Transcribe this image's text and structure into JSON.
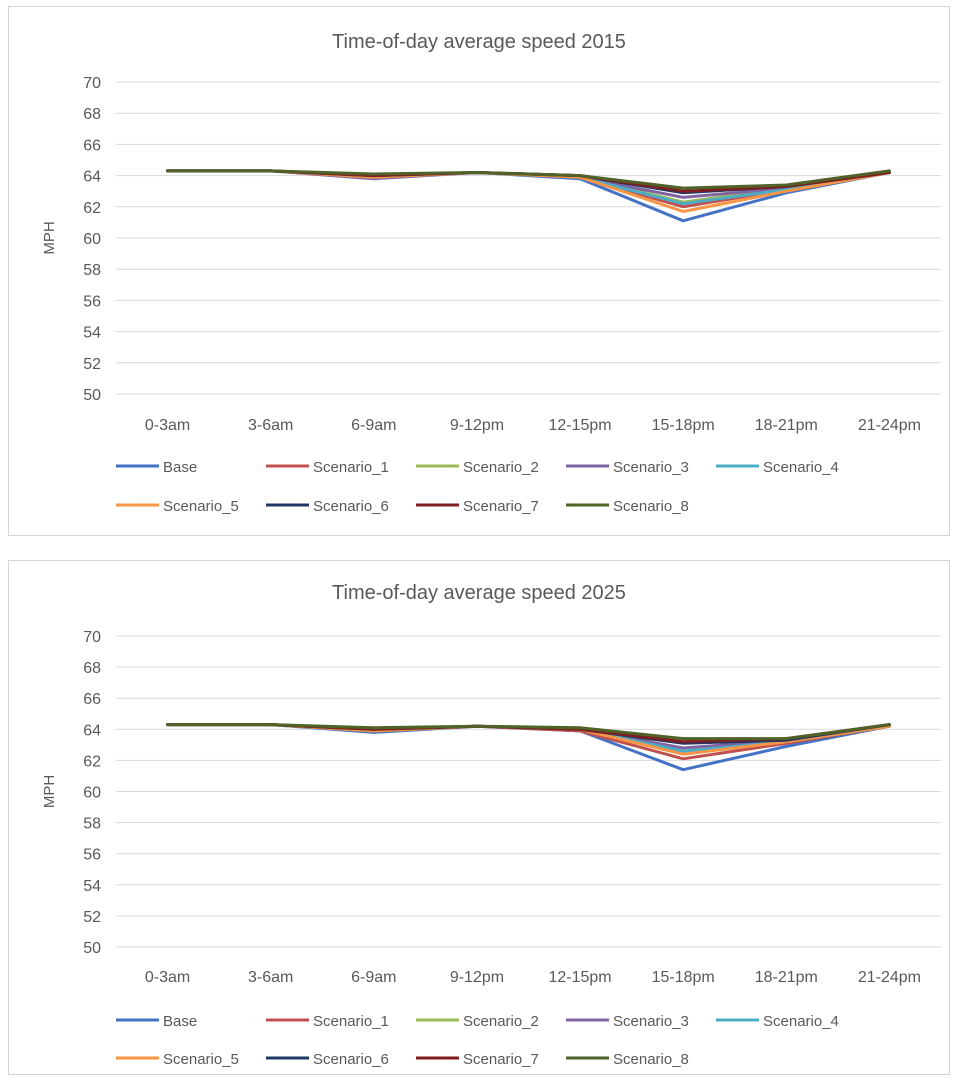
{
  "chart_data": [
    {
      "type": "line",
      "title": "Time-of-day average speed 2015",
      "xlabel": "",
      "ylabel": "MPH",
      "ylim": [
        50,
        70
      ],
      "yticks": [
        50,
        52,
        54,
        56,
        58,
        60,
        62,
        64,
        66,
        68,
        70
      ],
      "grid": true,
      "legend_position": "bottom",
      "categories": [
        "0-3am",
        "3-6am",
        "6-9am",
        "9-12pm",
        "12-15pm",
        "15-18pm",
        "18-21pm",
        "21-24pm"
      ],
      "series": [
        {
          "name": "Base",
          "color": "#4472C4",
          "values": [
            64.3,
            64.3,
            63.9,
            64.2,
            63.8,
            61.1,
            62.9,
            64.2
          ]
        },
        {
          "name": "Scenario_1",
          "color": "#C0504D",
          "values": [
            64.3,
            64.3,
            63.9,
            64.2,
            63.9,
            62.0,
            63.1,
            64.2
          ]
        },
        {
          "name": "Scenario_2",
          "color": "#9BBB59",
          "values": [
            64.3,
            64.3,
            63.9,
            64.2,
            63.9,
            62.3,
            63.2,
            64.2
          ]
        },
        {
          "name": "Scenario_3",
          "color": "#8064A2",
          "values": [
            64.3,
            64.3,
            63.8,
            64.2,
            63.9,
            62.6,
            63.2,
            64.2
          ]
        },
        {
          "name": "Scenario_4",
          "color": "#4BACC6",
          "values": [
            64.3,
            64.3,
            63.9,
            64.2,
            63.9,
            62.2,
            63.1,
            64.2
          ]
        },
        {
          "name": "Scenario_5",
          "color": "#F79646",
          "values": [
            64.3,
            64.3,
            63.9,
            64.2,
            63.9,
            61.7,
            63.0,
            64.2
          ]
        },
        {
          "name": "Scenario_6",
          "color": "#1F3864",
          "values": [
            64.3,
            64.3,
            64.0,
            64.2,
            64.0,
            62.9,
            63.3,
            64.2
          ]
        },
        {
          "name": "Scenario_7",
          "color": "#7F1F1F",
          "values": [
            64.3,
            64.3,
            64.0,
            64.2,
            64.0,
            63.0,
            63.3,
            64.2
          ]
        },
        {
          "name": "Scenario_8",
          "color": "#4F6228",
          "values": [
            64.3,
            64.3,
            64.1,
            64.2,
            64.0,
            63.2,
            63.4,
            64.3
          ]
        }
      ]
    },
    {
      "type": "line",
      "title": "Time-of-day average speed 2025",
      "xlabel": "",
      "ylabel": "MPH",
      "ylim": [
        50,
        70
      ],
      "yticks": [
        50,
        52,
        54,
        56,
        58,
        60,
        62,
        64,
        66,
        68,
        70
      ],
      "grid": true,
      "legend_position": "bottom",
      "categories": [
        "0-3am",
        "3-6am",
        "6-9am",
        "9-12pm",
        "12-15pm",
        "15-18pm",
        "18-21pm",
        "21-24pm"
      ],
      "series": [
        {
          "name": "Base",
          "color": "#4472C4",
          "values": [
            64.3,
            64.3,
            63.8,
            64.2,
            63.9,
            61.4,
            62.9,
            64.2
          ]
        },
        {
          "name": "Scenario_1",
          "color": "#C0504D",
          "values": [
            64.3,
            64.3,
            63.9,
            64.2,
            63.9,
            62.1,
            63.1,
            64.2
          ]
        },
        {
          "name": "Scenario_2",
          "color": "#9BBB59",
          "values": [
            64.3,
            64.3,
            63.9,
            64.2,
            64.0,
            62.5,
            63.2,
            64.2
          ]
        },
        {
          "name": "Scenario_3",
          "color": "#8064A2",
          "values": [
            64.3,
            64.3,
            64.0,
            64.2,
            64.0,
            62.8,
            63.3,
            64.2
          ]
        },
        {
          "name": "Scenario_4",
          "color": "#4BACC6",
          "values": [
            64.3,
            64.3,
            63.9,
            64.2,
            64.0,
            62.6,
            63.2,
            64.2
          ]
        },
        {
          "name": "Scenario_5",
          "color": "#F79646",
          "values": [
            64.3,
            64.3,
            63.9,
            64.2,
            64.0,
            62.4,
            63.2,
            64.2
          ]
        },
        {
          "name": "Scenario_6",
          "color": "#1F3864",
          "values": [
            64.3,
            64.3,
            64.0,
            64.2,
            64.0,
            63.1,
            63.3,
            64.3
          ]
        },
        {
          "name": "Scenario_7",
          "color": "#7F1F1F",
          "values": [
            64.3,
            64.3,
            64.0,
            64.2,
            64.0,
            63.2,
            63.4,
            64.3
          ]
        },
        {
          "name": "Scenario_8",
          "color": "#4F6228",
          "values": [
            64.3,
            64.3,
            64.1,
            64.2,
            64.1,
            63.4,
            63.4,
            64.3
          ]
        }
      ]
    }
  ]
}
